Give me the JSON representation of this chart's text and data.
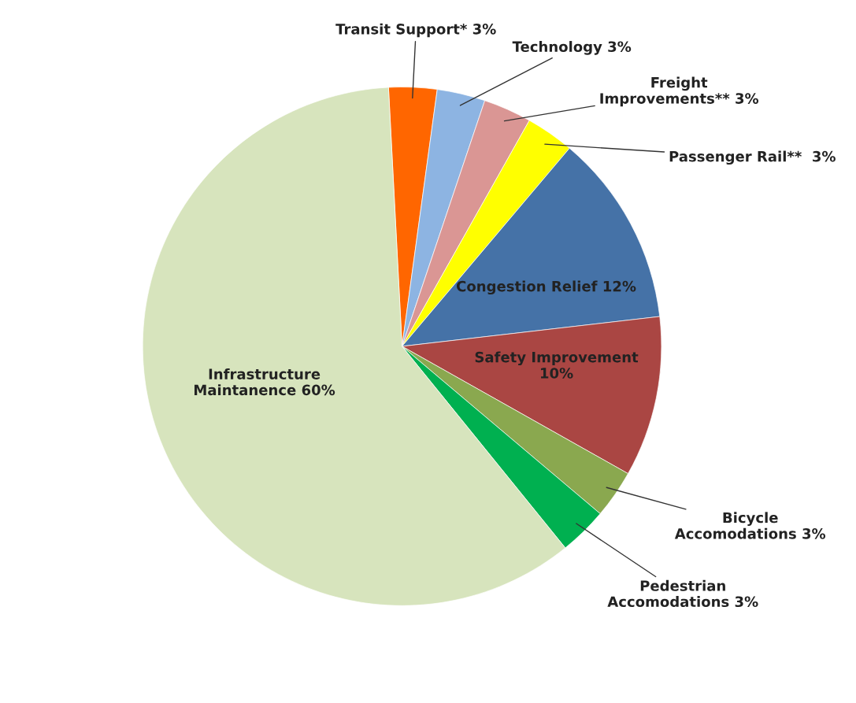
{
  "chart_data": {
    "type": "pie",
    "categories": [
      "Transit Support*",
      "Technology",
      "Freight\nImprovements**",
      "Passenger Rail** ",
      "Congestion Relief",
      "Safety Improvement\n",
      "Bicycle\nAccomodations",
      "Pedestrian\nAccomodations",
      "Infrastructure\nMaintanence"
    ],
    "values": [
      3,
      3,
      3,
      3,
      12,
      10,
      3,
      3,
      60
    ],
    "colors": [
      "#ff6600",
      "#8db4e2",
      "#da9694",
      "#ffff00",
      "#4572a7",
      "#aa4643",
      "#8aa84f",
      "#00b050",
      "#d7e4bd"
    ],
    "value_labels": [
      "3%",
      "3%",
      "3%",
      "3%",
      "12%",
      "10%",
      "3%",
      "3%",
      "60%"
    ]
  }
}
